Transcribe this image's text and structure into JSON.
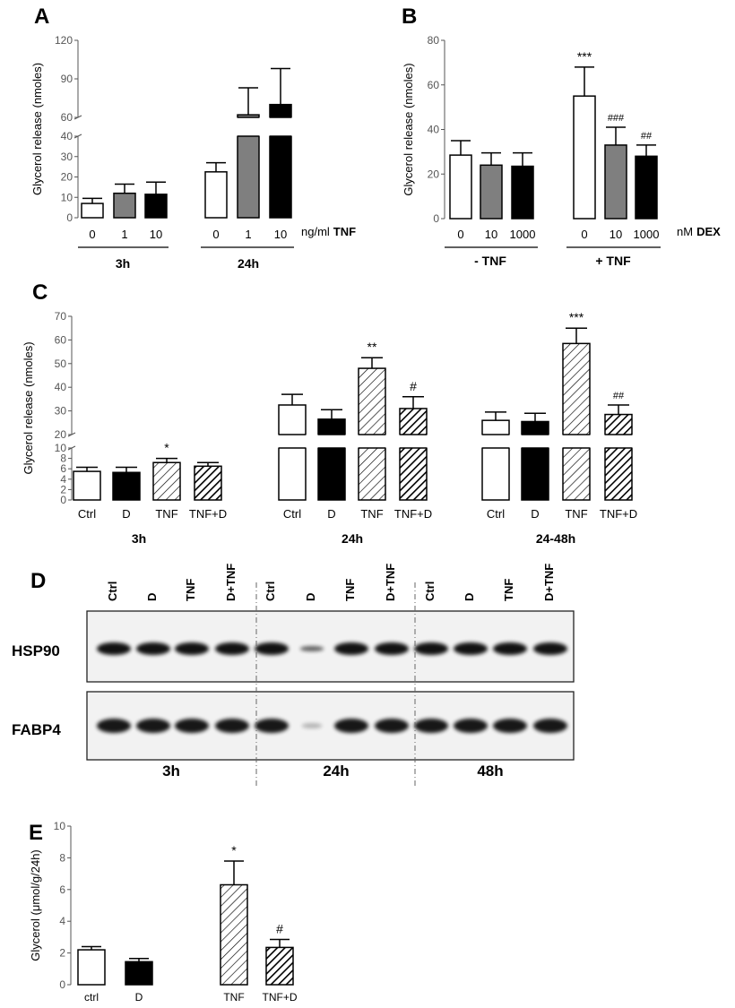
{
  "panels": {
    "A": "A",
    "B": "B",
    "C": "C",
    "D": "D",
    "E": "E"
  },
  "chart_data": [
    {
      "id": "A",
      "type": "bar",
      "ylabel": "Glycerol release (nmoles)",
      "ylim": [
        0,
        120
      ],
      "axis_break": [
        40,
        60
      ],
      "yticks": [
        "0",
        "10",
        "20",
        "30",
        "40",
        "60",
        "90",
        "120"
      ],
      "unit_label": "ng/ml",
      "unit_bold": "TNF",
      "categories": [
        "0",
        "1",
        "10",
        "0",
        "1",
        "10"
      ],
      "groups": [
        "3h",
        "24h"
      ],
      "values": [
        7,
        12,
        11.5,
        22.5,
        62,
        70
      ],
      "errors": [
        2.5,
        4.5,
        6,
        4.5,
        21,
        28
      ],
      "fills": [
        "white",
        "gray",
        "black",
        "white",
        "gray",
        "black"
      ]
    },
    {
      "id": "B",
      "type": "bar",
      "ylabel": "Glycerol release (nmoles)",
      "ylim": [
        0,
        80
      ],
      "yticks": [
        "0",
        "20",
        "40",
        "60",
        "80"
      ],
      "unit_label": "nM",
      "unit_bold": "DEX",
      "categories": [
        "0",
        "10",
        "1000",
        "0",
        "10",
        "1000"
      ],
      "groups": [
        "- TNF",
        "+ TNF"
      ],
      "values": [
        28.5,
        24,
        23.5,
        55,
        33,
        28
      ],
      "errors": [
        6.5,
        5.5,
        6,
        13,
        8,
        5
      ],
      "fills": [
        "white",
        "gray",
        "black",
        "white",
        "gray",
        "black"
      ],
      "annotations": [
        "",
        "",
        "",
        "***",
        "###",
        "##"
      ]
    },
    {
      "id": "C",
      "type": "bar",
      "ylabel": "Glycerol release (nmoles)",
      "ylim": [
        0,
        70
      ],
      "axis_break": [
        10,
        20
      ],
      "yticks": [
        "0",
        "2",
        "4",
        "6",
        "8",
        "10",
        "20",
        "30",
        "40",
        "50",
        "60",
        "70"
      ],
      "categories": [
        "Ctrl",
        "D",
        "TNF",
        "TNF+D",
        "Ctrl",
        "D",
        "TNF",
        "TNF+D",
        "Ctrl",
        "D",
        "TNF",
        "TNF+D"
      ],
      "groups": [
        "3h",
        "24h",
        "24-48h"
      ],
      "values": [
        5.5,
        5.3,
        7.2,
        6.5,
        32.5,
        26.5,
        48,
        31,
        26,
        25.5,
        58.5,
        28.5
      ],
      "errors": [
        0.8,
        1,
        0.8,
        0.7,
        4.5,
        4,
        4.5,
        5,
        3.5,
        3.5,
        6.5,
        4
      ],
      "fills": [
        "white",
        "black",
        "hatch",
        "hatch-dark",
        "white",
        "black",
        "hatch",
        "hatch-dark",
        "white",
        "black",
        "hatch",
        "hatch-dark"
      ],
      "annotations": [
        "",
        "",
        "*",
        "",
        "",
        "",
        "**",
        "#",
        "",
        "",
        "***",
        "##"
      ]
    },
    {
      "id": "E",
      "type": "bar",
      "ylabel": "Glycerol (μmol/g/24h)",
      "ylim": [
        0,
        10
      ],
      "yticks": [
        "0",
        "2",
        "4",
        "6",
        "8",
        "10"
      ],
      "categories": [
        "ctrl",
        "D",
        "TNF",
        "TNF+D"
      ],
      "values": [
        2.2,
        1.45,
        6.3,
        2.35
      ],
      "errors": [
        0.2,
        0.2,
        1.5,
        0.5
      ],
      "fills": [
        "white",
        "black",
        "hatch",
        "hatch-dark"
      ],
      "annotations": [
        "",
        "",
        "*",
        "#"
      ]
    }
  ],
  "blot": {
    "lanes": [
      "Ctrl",
      "D",
      "TNF",
      "D+TNF",
      "Ctrl",
      "D",
      "TNF",
      "D+TNF",
      "Ctrl",
      "D",
      "TNF",
      "D+TNF"
    ],
    "rows": [
      "HSP90",
      "FABP4"
    ],
    "timepoints": [
      "3h",
      "24h",
      "48h"
    ]
  }
}
